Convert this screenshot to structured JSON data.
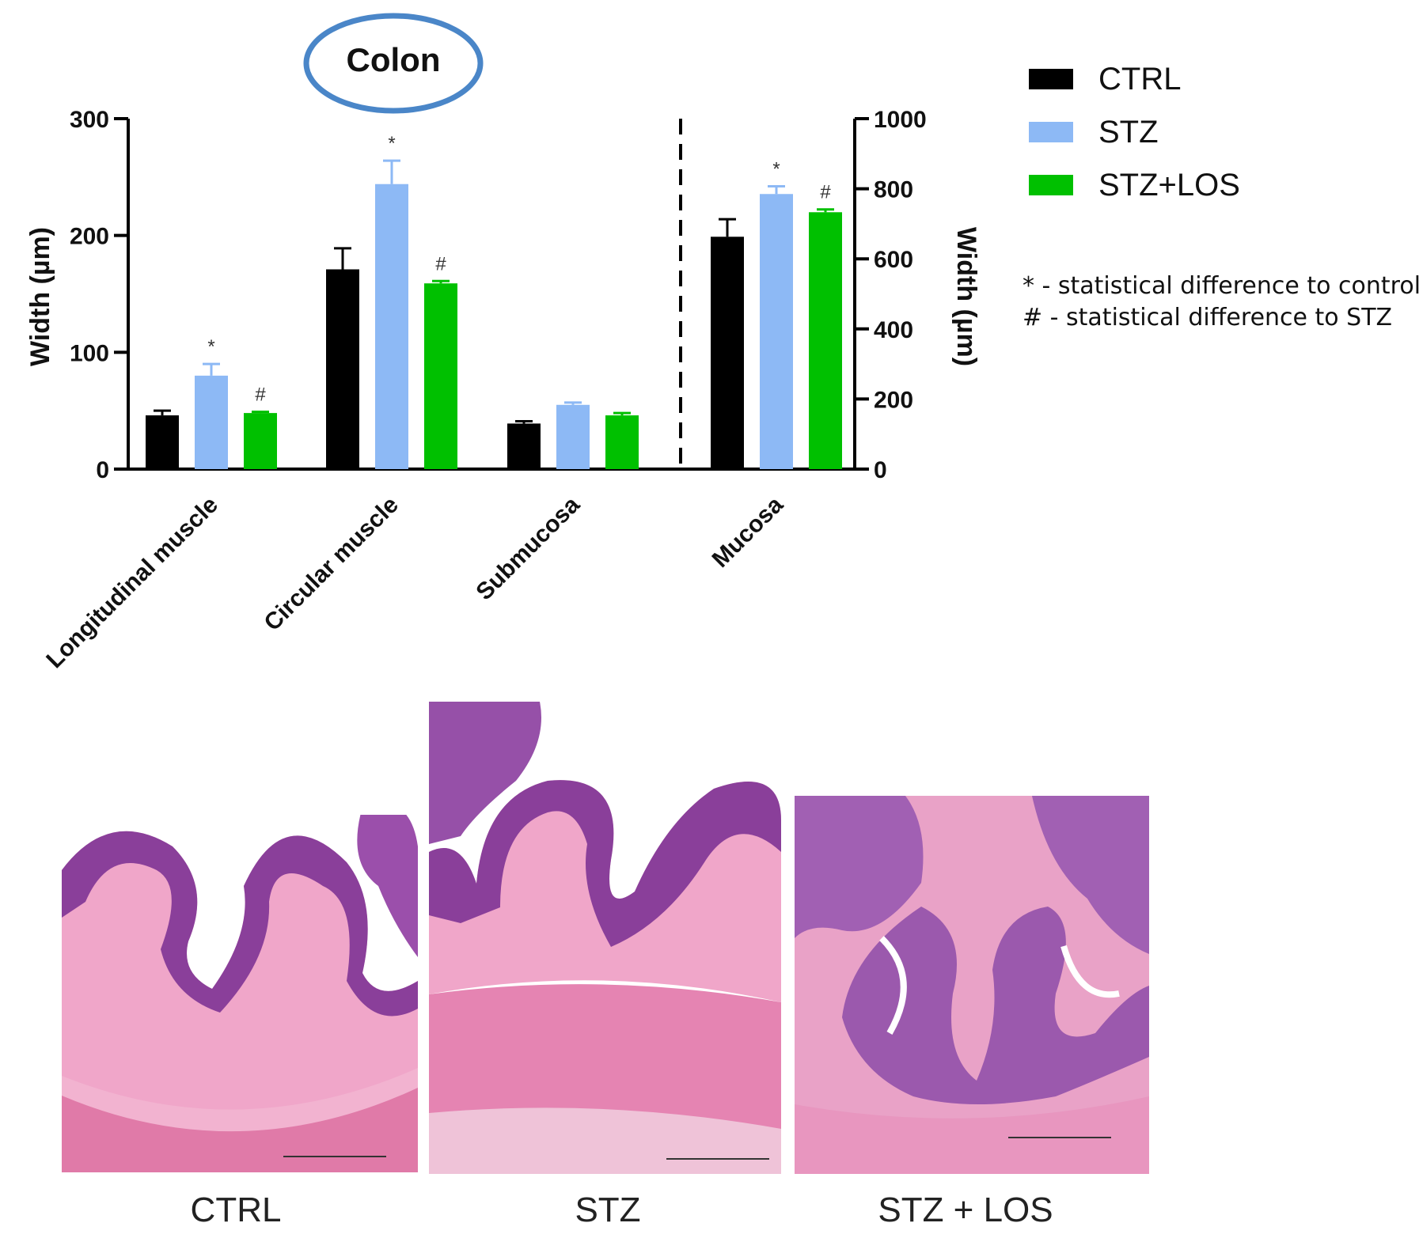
{
  "chart_data": {
    "type": "bar",
    "title": "Colon",
    "categories": [
      "Longitudinal muscle",
      "Circular muscle",
      "Submucosa",
      "Mucosa"
    ],
    "left_axis": {
      "label": "Width (µm)",
      "ylim": [
        0,
        300
      ],
      "ticks": [
        "0",
        "100",
        "200",
        "300"
      ]
    },
    "right_axis": {
      "label": "Width (µm)",
      "ylim": [
        0,
        1000
      ],
      "ticks": [
        "0",
        "200",
        "400",
        "600",
        "800",
        "1000"
      ]
    },
    "axis_assignment": [
      "left",
      "left",
      "left",
      "right"
    ],
    "series": [
      {
        "name": "CTRL",
        "color": "#000000",
        "values": [
          46,
          171,
          39,
          663
        ],
        "errors": [
          4,
          18,
          2,
          50
        ],
        "marks": [
          "",
          "",
          "",
          ""
        ]
      },
      {
        "name": "STZ",
        "color": "#8db9f5",
        "values": [
          80,
          244,
          55,
          785
        ],
        "errors": [
          10,
          20,
          2,
          22
        ],
        "marks": [
          "*",
          "*",
          "",
          "*"
        ]
      },
      {
        "name": "STZ+LOS",
        "color": "#00c000",
        "values": [
          48,
          159,
          46,
          733
        ],
        "errors": [
          1,
          2,
          2,
          8
        ],
        "marks": [
          "#",
          "#",
          "",
          "#"
        ]
      }
    ],
    "legend_position": "top-right",
    "grid": false
  },
  "notes": [
    "* - statistical difference to control",
    "# - statistical difference to STZ"
  ],
  "micrographs": [
    {
      "caption": "CTRL"
    },
    {
      "caption": "STZ"
    },
    {
      "caption": "STZ + LOS"
    }
  ],
  "colors": {
    "highlight_ellipse": "#4a86c8",
    "tissue_pink": "#e98bb8",
    "mucosa_purple": "#8a3f9a"
  }
}
